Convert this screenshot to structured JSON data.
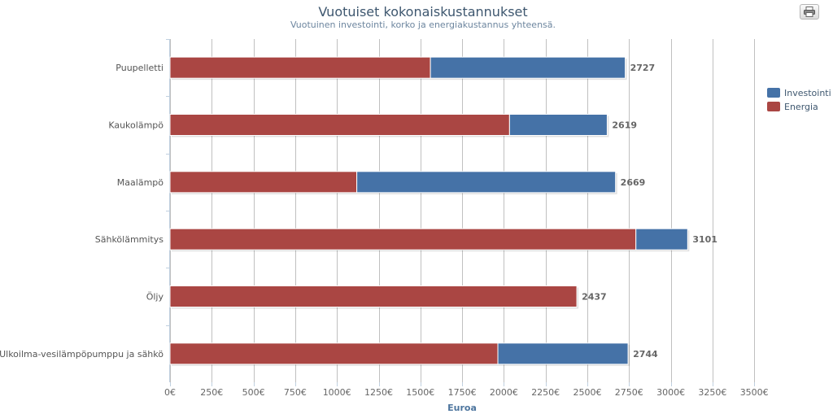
{
  "chart_data": {
    "type": "bar",
    "orientation": "horizontal",
    "stacked": true,
    "title": "Vuotuiset kokonaiskustannukset",
    "subtitle": "Vuotuinen investointi, korko ja energiakustannus yhteensä.",
    "xlabel": "Euroa",
    "ylabel": "",
    "xlim": [
      0,
      3500
    ],
    "tick_labels": [
      "0€",
      "250€",
      "500€",
      "750€",
      "1000€",
      "1250€",
      "1500€",
      "1750€",
      "2000€",
      "2250€",
      "2500€",
      "2750€",
      "3000€",
      "3250€",
      "3500€"
    ],
    "categories": [
      "Puupelletti",
      "Kaukolämpö",
      "Maalämpö",
      "Sähkölämmitys",
      "Öljy",
      "Ulkoilma-vesilämpöpumppu ja sähkö"
    ],
    "series": [
      {
        "name": "Investointi",
        "color": "#4572a7",
        "values": [
          1167,
          585,
          1550,
          310,
          0,
          780
        ]
      },
      {
        "name": "Energia",
        "color": "#aa4643",
        "values": [
          1560,
          2034,
          1119,
          2791,
          2437,
          1964
        ]
      }
    ],
    "totals": [
      "2727",
      "2619",
      "2669",
      "3101",
      "2437",
      "2744"
    ],
    "grid": true,
    "legend_position": "right"
  },
  "print_icon": "printer-icon"
}
